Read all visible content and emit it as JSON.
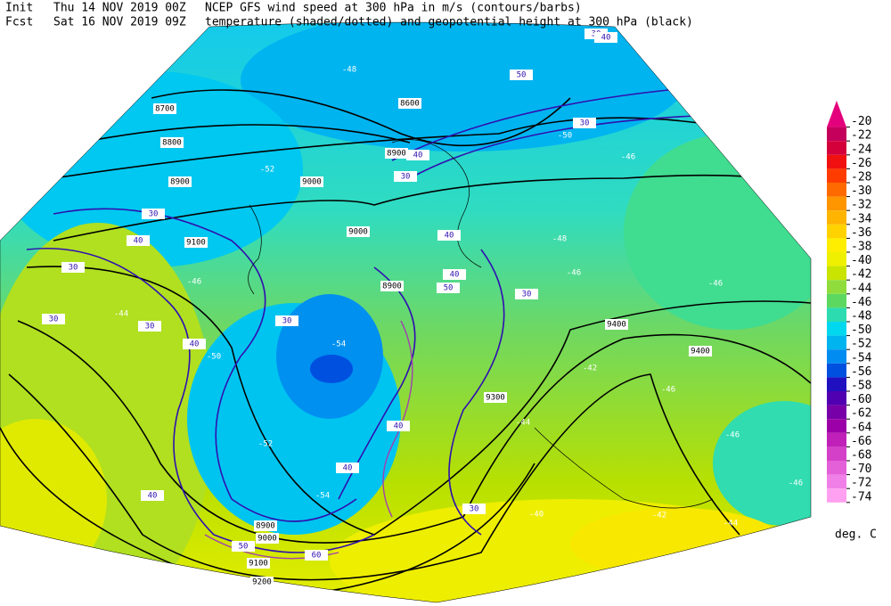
{
  "header": {
    "init_label": "Init",
    "init_time": "Thu 14 NOV 2019 00Z",
    "line1": "NCEP GFS wind speed at 300 hPa in m/s (contours/barbs)",
    "fcst_label": "Fcst",
    "fcst_time": "Sat 16 NOV 2019 09Z",
    "line2": "temperature (shaded/dotted) and geopotential height at 300 hPa (black)"
  },
  "colorbar": {
    "levels": [
      -20,
      -22,
      -24,
      -26,
      -28,
      -30,
      -32,
      -34,
      -36,
      -38,
      -40,
      -42,
      -44,
      -46,
      -48,
      -50,
      -52,
      -54,
      -56,
      -58,
      -60,
      -62,
      -64,
      -66,
      -68,
      -70,
      -72,
      -74
    ],
    "colors": [
      "#e4007c",
      "#c4005c",
      "#d4003c",
      "#f01010",
      "#ff3c00",
      "#ff6a00",
      "#ff9600",
      "#ffb400",
      "#ffd200",
      "#ffee00",
      "#eef000",
      "#c8e400",
      "#90dc3c",
      "#5cd860",
      "#2cdcb0",
      "#00d8f0",
      "#00b4f0",
      "#008cf0",
      "#0050e0",
      "#2010c0",
      "#5000b0",
      "#7800a8",
      "#9c00a8",
      "#c020b8",
      "#d440c8",
      "#e460d8",
      "#f080e8",
      "#ffa0f0"
    ],
    "unit": "deg. C"
  },
  "map": {
    "height_labels": [
      8700,
      8800,
      8900,
      9000,
      9100,
      8600,
      8900,
      9000,
      8900,
      9400,
      9400,
      9300,
      8900,
      9000,
      9100,
      9200
    ],
    "wind_labels": [
      30,
      40,
      30,
      30,
      30,
      40,
      30,
      40,
      30,
      40,
      40,
      50,
      30,
      30,
      50,
      40,
      40,
      40,
      50,
      60,
      30,
      30,
      40
    ],
    "temperature_labels": [
      -54,
      -54,
      -50,
      -52,
      -46,
      -44,
      -46,
      -46,
      -46,
      -46,
      -44,
      -42,
      -40,
      -42,
      -44,
      -48,
      -46,
      -46,
      -50,
      -52,
      -48
    ]
  }
}
